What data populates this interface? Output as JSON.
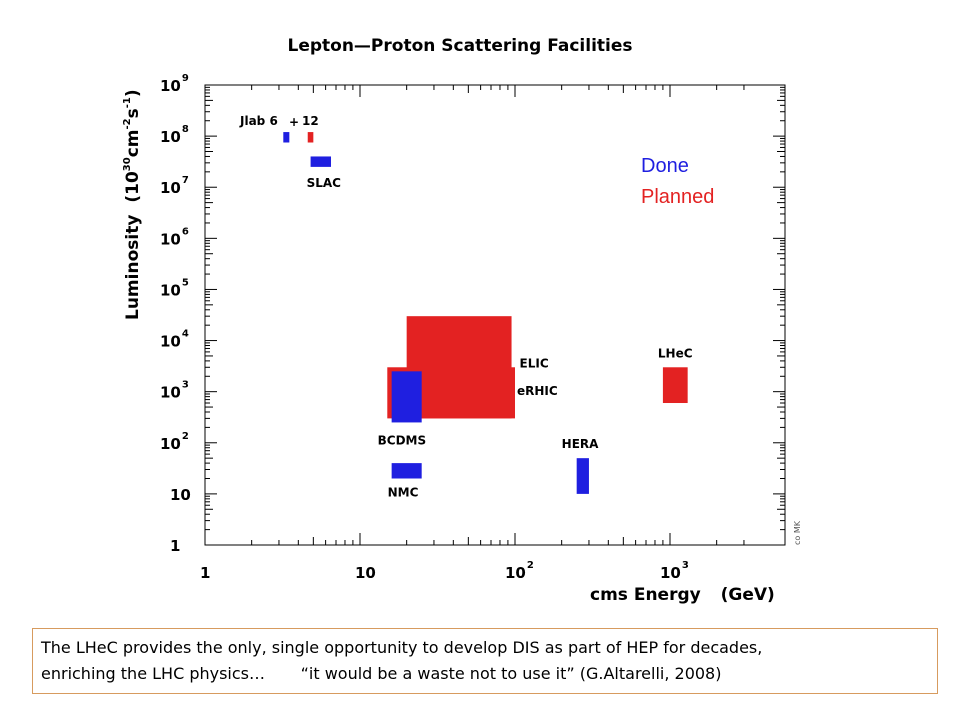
{
  "chart_data": {
    "type": "scatter",
    "title": "Lepton—Proton Scattering Facilities",
    "xlabel": "cms Energy",
    "xlabel_unit": "(GeV)",
    "ylabel": "Luminosity",
    "ylabel_unit": "(10^30 cm^-2 s^-1)",
    "x_scale": "log",
    "y_scale": "log",
    "xlim": [
      1,
      3500
    ],
    "ylim": [
      1,
      1000000000
    ],
    "x_ticks": [
      {
        "base": "1",
        "exp": ""
      },
      {
        "base": "10",
        "exp": ""
      },
      {
        "base": "10",
        "exp": "2"
      },
      {
        "base": "10",
        "exp": "3"
      }
    ],
    "y_ticks": [
      {
        "base": "1",
        "exp": ""
      },
      {
        "base": "10",
        "exp": ""
      },
      {
        "base": "10",
        "exp": "2"
      },
      {
        "base": "10",
        "exp": "3"
      },
      {
        "base": "10",
        "exp": "4"
      },
      {
        "base": "10",
        "exp": "5"
      },
      {
        "base": "10",
        "exp": "6"
      },
      {
        "base": "10",
        "exp": "7"
      },
      {
        "base": "10",
        "exp": "8"
      },
      {
        "base": "10",
        "exp": "9"
      }
    ],
    "legend": [
      {
        "label": "Done",
        "color": "#1f1fe0"
      },
      {
        "label": "Planned",
        "color": "#e32222"
      }
    ],
    "legend_position": "top-right",
    "series": [
      {
        "label": "",
        "status": "Done",
        "x": [
          3.2,
          3.5
        ],
        "y": [
          75000000,
          120000000
        ]
      },
      {
        "label": "",
        "status": "Planned",
        "x": [
          4.6,
          5.0
        ],
        "y": [
          75000000,
          120000000
        ]
      },
      {
        "label": "SLAC",
        "status": "Done",
        "x": [
          4.8,
          6.5
        ],
        "y": [
          25000000,
          40000000
        ]
      },
      {
        "label": "ELIC",
        "status": "Planned",
        "x": [
          20,
          95
        ],
        "y": [
          300,
          30000
        ]
      },
      {
        "label": "eRHIC",
        "status": "Planned",
        "x": [
          15,
          100
        ],
        "y": [
          300,
          3000
        ]
      },
      {
        "label": "BCDMS",
        "status": "Done",
        "x": [
          16,
          25
        ],
        "y": [
          250,
          2500
        ]
      },
      {
        "label": "NMC",
        "status": "Done",
        "x": [
          16,
          25
        ],
        "y": [
          20,
          40
        ]
      },
      {
        "label": "HERA",
        "status": "Done",
        "x": [
          250,
          300
        ],
        "y": [
          10,
          50
        ]
      },
      {
        "label": "LHeC",
        "status": "Planned",
        "x": [
          900,
          1300
        ],
        "y": [
          600,
          3000
        ]
      }
    ],
    "top_labels": {
      "jlab": "Jlab 6",
      "plus": "+",
      "twelve": "12"
    },
    "credit": "co MK"
  },
  "caption": {
    "line1": "The LHeC provides the only, single opportunity to develop DIS as part of HEP for decades,",
    "line2": "enriching the LHC physics…       “it would be a waste not to use it” (G.Altarelli, 2008)"
  }
}
